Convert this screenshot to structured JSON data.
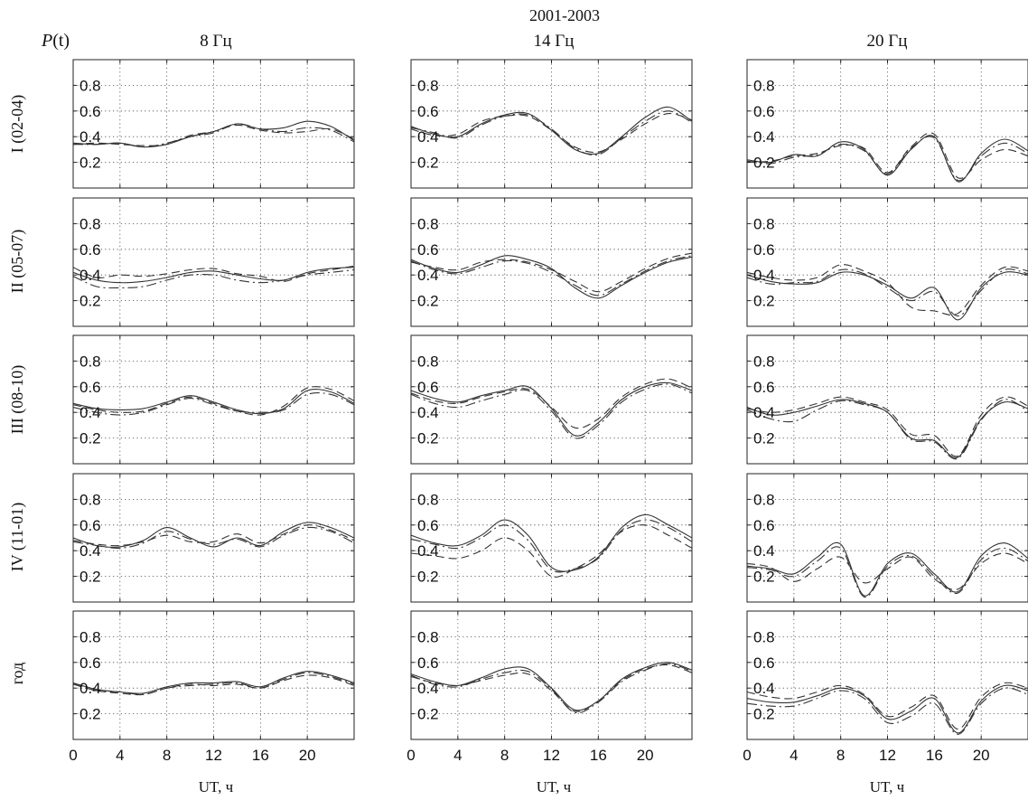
{
  "figure": {
    "title": "2001-2003",
    "ylabel": "P(t)",
    "ylabel_main": "P",
    "ylabel_arg": "(t)"
  },
  "columns": [
    {
      "label": "8 Гц"
    },
    {
      "label": "14 Гц"
    },
    {
      "label": "20 Гц"
    }
  ],
  "rows": [
    {
      "label": "I (02-04)"
    },
    {
      "label": "II (05-07)"
    },
    {
      "label": "III (08-10)"
    },
    {
      "label": "IV (11-01)"
    },
    {
      "label": "год"
    }
  ],
  "axes": {
    "xlabel": "UT, ч",
    "xlim": [
      0,
      24
    ],
    "ylim": [
      0,
      1.0
    ],
    "xticks": [
      0,
      4,
      8,
      12,
      16,
      20
    ],
    "yticks": [
      0.2,
      0.4,
      0.6,
      0.8
    ],
    "ytick_labels": [
      "0.2",
      "0.4",
      "0.6",
      "0.8"
    ],
    "grid": "dotted",
    "line_color": "#333333"
  },
  "chart_data": [
    {
      "type": "line",
      "row": "I (02-04)",
      "column": "8 Гц",
      "x": [
        0,
        2,
        4,
        6,
        8,
        10,
        12,
        14,
        16,
        18,
        20,
        22,
        24
      ],
      "series": [
        {
          "style": "solid",
          "values": [
            0.35,
            0.34,
            0.35,
            0.32,
            0.34,
            0.4,
            0.44,
            0.5,
            0.46,
            0.47,
            0.52,
            0.48,
            0.37
          ]
        },
        {
          "style": "dashed",
          "values": [
            0.34,
            0.35,
            0.34,
            0.33,
            0.34,
            0.41,
            0.44,
            0.49,
            0.45,
            0.43,
            0.44,
            0.46,
            0.38
          ]
        },
        {
          "style": "dashdot",
          "values": [
            0.34,
            0.34,
            0.35,
            0.32,
            0.35,
            0.4,
            0.43,
            0.5,
            0.46,
            0.44,
            0.47,
            0.45,
            0.36
          ]
        }
      ]
    },
    {
      "type": "line",
      "row": "I (02-04)",
      "column": "14 Гц",
      "x": [
        0,
        2,
        4,
        6,
        8,
        10,
        12,
        14,
        16,
        18,
        20,
        22,
        24
      ],
      "series": [
        {
          "style": "solid",
          "values": [
            0.48,
            0.42,
            0.4,
            0.5,
            0.57,
            0.58,
            0.45,
            0.3,
            0.27,
            0.4,
            0.55,
            0.63,
            0.52
          ]
        },
        {
          "style": "dashed",
          "values": [
            0.46,
            0.41,
            0.42,
            0.52,
            0.56,
            0.56,
            0.45,
            0.32,
            0.28,
            0.38,
            0.5,
            0.58,
            0.53
          ]
        },
        {
          "style": "dashdot",
          "values": [
            0.47,
            0.43,
            0.39,
            0.49,
            0.56,
            0.57,
            0.46,
            0.31,
            0.26,
            0.39,
            0.52,
            0.6,
            0.51
          ]
        }
      ]
    },
    {
      "type": "line",
      "row": "I (02-04)",
      "column": "20 Гц",
      "x": [
        0,
        2,
        4,
        6,
        8,
        10,
        12,
        14,
        16,
        18,
        20,
        22,
        24
      ],
      "series": [
        {
          "style": "solid",
          "values": [
            0.22,
            0.2,
            0.26,
            0.25,
            0.36,
            0.3,
            0.1,
            0.3,
            0.4,
            0.05,
            0.27,
            0.38,
            0.29
          ]
        },
        {
          "style": "dashed",
          "values": [
            0.2,
            0.21,
            0.25,
            0.27,
            0.33,
            0.31,
            0.12,
            0.32,
            0.42,
            0.08,
            0.22,
            0.3,
            0.25
          ]
        },
        {
          "style": "dashdot",
          "values": [
            0.21,
            0.19,
            0.24,
            0.26,
            0.34,
            0.29,
            0.11,
            0.31,
            0.39,
            0.06,
            0.25,
            0.35,
            0.27
          ]
        }
      ]
    },
    {
      "type": "line",
      "row": "II (05-07)",
      "column": "8 Гц",
      "x": [
        0,
        2,
        4,
        6,
        8,
        10,
        12,
        14,
        16,
        18,
        20,
        22,
        24
      ],
      "series": [
        {
          "style": "solid",
          "values": [
            0.42,
            0.36,
            0.34,
            0.35,
            0.38,
            0.42,
            0.43,
            0.4,
            0.37,
            0.36,
            0.42,
            0.45,
            0.46
          ]
        },
        {
          "style": "dashed",
          "values": [
            0.46,
            0.38,
            0.4,
            0.39,
            0.41,
            0.44,
            0.45,
            0.41,
            0.39,
            0.35,
            0.41,
            0.44,
            0.47
          ]
        },
        {
          "style": "dashdot",
          "values": [
            0.39,
            0.31,
            0.3,
            0.31,
            0.36,
            0.4,
            0.4,
            0.36,
            0.34,
            0.36,
            0.4,
            0.42,
            0.44
          ]
        }
      ]
    },
    {
      "type": "line",
      "row": "II (05-07)",
      "column": "14 Гц",
      "x": [
        0,
        2,
        4,
        6,
        8,
        10,
        12,
        14,
        16,
        18,
        20,
        22,
        24
      ],
      "series": [
        {
          "style": "solid",
          "values": [
            0.52,
            0.45,
            0.42,
            0.48,
            0.55,
            0.52,
            0.45,
            0.3,
            0.22,
            0.32,
            0.42,
            0.5,
            0.54
          ]
        },
        {
          "style": "dashed",
          "values": [
            0.5,
            0.46,
            0.44,
            0.5,
            0.52,
            0.5,
            0.44,
            0.35,
            0.27,
            0.35,
            0.45,
            0.53,
            0.57
          ]
        },
        {
          "style": "dashdot",
          "values": [
            0.51,
            0.44,
            0.41,
            0.46,
            0.51,
            0.49,
            0.42,
            0.32,
            0.24,
            0.33,
            0.43,
            0.51,
            0.55
          ]
        }
      ]
    },
    {
      "type": "line",
      "row": "II (05-07)",
      "column": "20 Гц",
      "x": [
        0,
        2,
        4,
        6,
        8,
        10,
        12,
        14,
        16,
        18,
        20,
        22,
        24
      ],
      "series": [
        {
          "style": "solid",
          "values": [
            0.4,
            0.35,
            0.33,
            0.34,
            0.42,
            0.4,
            0.32,
            0.22,
            0.3,
            0.05,
            0.3,
            0.42,
            0.4
          ]
        },
        {
          "style": "dashed",
          "values": [
            0.42,
            0.38,
            0.36,
            0.38,
            0.48,
            0.43,
            0.34,
            0.15,
            0.12,
            0.1,
            0.32,
            0.46,
            0.43
          ]
        },
        {
          "style": "dashdot",
          "values": [
            0.38,
            0.33,
            0.34,
            0.35,
            0.44,
            0.41,
            0.3,
            0.2,
            0.27,
            0.08,
            0.28,
            0.44,
            0.41
          ]
        }
      ]
    },
    {
      "type": "line",
      "row": "III (08-10)",
      "column": "8 Гц",
      "x": [
        0,
        2,
        4,
        6,
        8,
        10,
        12,
        14,
        16,
        18,
        20,
        22,
        24
      ],
      "series": [
        {
          "style": "solid",
          "values": [
            0.47,
            0.43,
            0.42,
            0.43,
            0.48,
            0.53,
            0.48,
            0.42,
            0.39,
            0.43,
            0.57,
            0.56,
            0.47
          ]
        },
        {
          "style": "dashed",
          "values": [
            0.46,
            0.42,
            0.4,
            0.41,
            0.47,
            0.52,
            0.47,
            0.41,
            0.38,
            0.45,
            0.59,
            0.58,
            0.49
          ]
        },
        {
          "style": "dashdot",
          "values": [
            0.44,
            0.4,
            0.38,
            0.4,
            0.46,
            0.51,
            0.46,
            0.41,
            0.4,
            0.42,
            0.54,
            0.54,
            0.46
          ]
        }
      ]
    },
    {
      "type": "line",
      "row": "III (08-10)",
      "column": "14 Гц",
      "x": [
        0,
        2,
        4,
        6,
        8,
        10,
        12,
        14,
        16,
        18,
        20,
        22,
        24
      ],
      "series": [
        {
          "style": "solid",
          "values": [
            0.57,
            0.51,
            0.48,
            0.53,
            0.57,
            0.6,
            0.43,
            0.22,
            0.32,
            0.5,
            0.6,
            0.63,
            0.57
          ]
        },
        {
          "style": "dashed",
          "values": [
            0.55,
            0.49,
            0.47,
            0.52,
            0.56,
            0.58,
            0.44,
            0.28,
            0.35,
            0.52,
            0.62,
            0.66,
            0.59
          ]
        },
        {
          "style": "dashdot",
          "values": [
            0.54,
            0.47,
            0.44,
            0.49,
            0.54,
            0.57,
            0.41,
            0.2,
            0.3,
            0.48,
            0.58,
            0.62,
            0.55
          ]
        }
      ]
    },
    {
      "type": "line",
      "row": "III (08-10)",
      "column": "20 Гц",
      "x": [
        0,
        2,
        4,
        6,
        8,
        10,
        12,
        14,
        16,
        18,
        20,
        22,
        24
      ],
      "series": [
        {
          "style": "solid",
          "values": [
            0.44,
            0.38,
            0.4,
            0.45,
            0.5,
            0.47,
            0.4,
            0.2,
            0.18,
            0.05,
            0.35,
            0.48,
            0.43
          ]
        },
        {
          "style": "dashed",
          "values": [
            0.43,
            0.4,
            0.42,
            0.47,
            0.52,
            0.48,
            0.42,
            0.23,
            0.22,
            0.06,
            0.38,
            0.52,
            0.45
          ]
        },
        {
          "style": "dashdot",
          "values": [
            0.42,
            0.35,
            0.33,
            0.42,
            0.49,
            0.46,
            0.4,
            0.19,
            0.17,
            0.04,
            0.34,
            0.5,
            0.41
          ]
        }
      ]
    },
    {
      "type": "line",
      "row": "IV (11-01)",
      "column": "8 Гц",
      "x": [
        0,
        2,
        4,
        6,
        8,
        10,
        12,
        14,
        16,
        18,
        20,
        22,
        24
      ],
      "series": [
        {
          "style": "solid",
          "values": [
            0.5,
            0.44,
            0.43,
            0.48,
            0.58,
            0.5,
            0.43,
            0.5,
            0.44,
            0.55,
            0.62,
            0.58,
            0.5
          ]
        },
        {
          "style": "dashed",
          "values": [
            0.48,
            0.45,
            0.44,
            0.47,
            0.52,
            0.47,
            0.47,
            0.53,
            0.46,
            0.53,
            0.6,
            0.56,
            0.48
          ]
        },
        {
          "style": "dashdot",
          "values": [
            0.47,
            0.44,
            0.42,
            0.46,
            0.55,
            0.49,
            0.45,
            0.49,
            0.43,
            0.52,
            0.58,
            0.55,
            0.46
          ]
        }
      ]
    },
    {
      "type": "line",
      "row": "IV (11-01)",
      "column": "14 Гц",
      "x": [
        0,
        2,
        4,
        6,
        8,
        10,
        12,
        14,
        16,
        18,
        20,
        22,
        24
      ],
      "series": [
        {
          "style": "solid",
          "values": [
            0.52,
            0.46,
            0.44,
            0.52,
            0.64,
            0.52,
            0.27,
            0.25,
            0.35,
            0.58,
            0.68,
            0.6,
            0.5
          ]
        },
        {
          "style": "dashed",
          "values": [
            0.38,
            0.36,
            0.34,
            0.4,
            0.5,
            0.4,
            0.2,
            0.26,
            0.37,
            0.55,
            0.6,
            0.52,
            0.42
          ]
        },
        {
          "style": "dashdot",
          "values": [
            0.49,
            0.45,
            0.42,
            0.5,
            0.6,
            0.48,
            0.25,
            0.26,
            0.34,
            0.56,
            0.64,
            0.58,
            0.47
          ]
        }
      ]
    },
    {
      "type": "line",
      "row": "IV (11-01)",
      "column": "20 Гц",
      "x": [
        0,
        2,
        4,
        6,
        8,
        10,
        12,
        14,
        16,
        18,
        20,
        22,
        24
      ],
      "series": [
        {
          "style": "solid",
          "values": [
            0.28,
            0.26,
            0.22,
            0.35,
            0.45,
            0.05,
            0.3,
            0.38,
            0.22,
            0.08,
            0.36,
            0.46,
            0.34
          ]
        },
        {
          "style": "dashed",
          "values": [
            0.3,
            0.27,
            0.16,
            0.26,
            0.35,
            0.15,
            0.26,
            0.35,
            0.18,
            0.1,
            0.3,
            0.38,
            0.3
          ]
        },
        {
          "style": "dashdot",
          "values": [
            0.27,
            0.25,
            0.2,
            0.32,
            0.42,
            0.04,
            0.28,
            0.36,
            0.2,
            0.07,
            0.33,
            0.42,
            0.32
          ]
        }
      ]
    },
    {
      "type": "line",
      "row": "год",
      "column": "8 Гц",
      "x": [
        0,
        2,
        4,
        6,
        8,
        10,
        12,
        14,
        16,
        18,
        20,
        22,
        24
      ],
      "series": [
        {
          "style": "solid",
          "values": [
            0.44,
            0.39,
            0.37,
            0.36,
            0.41,
            0.44,
            0.44,
            0.45,
            0.41,
            0.48,
            0.53,
            0.5,
            0.44
          ]
        },
        {
          "style": "dashed",
          "values": [
            0.43,
            0.38,
            0.36,
            0.35,
            0.4,
            0.43,
            0.42,
            0.43,
            0.4,
            0.46,
            0.5,
            0.48,
            0.42
          ]
        },
        {
          "style": "dashdot",
          "values": [
            0.44,
            0.38,
            0.37,
            0.35,
            0.4,
            0.42,
            0.43,
            0.44,
            0.4,
            0.47,
            0.52,
            0.49,
            0.43
          ]
        }
      ]
    },
    {
      "type": "line",
      "row": "год",
      "column": "14 Гц",
      "x": [
        0,
        2,
        4,
        6,
        8,
        10,
        12,
        14,
        16,
        18,
        20,
        22,
        24
      ],
      "series": [
        {
          "style": "solid",
          "values": [
            0.51,
            0.45,
            0.42,
            0.48,
            0.55,
            0.55,
            0.4,
            0.23,
            0.3,
            0.47,
            0.56,
            0.6,
            0.54
          ]
        },
        {
          "style": "dashed",
          "values": [
            0.49,
            0.44,
            0.42,
            0.46,
            0.5,
            0.51,
            0.38,
            0.22,
            0.3,
            0.46,
            0.55,
            0.58,
            0.52
          ]
        },
        {
          "style": "dashdot",
          "values": [
            0.5,
            0.43,
            0.41,
            0.47,
            0.52,
            0.53,
            0.39,
            0.21,
            0.29,
            0.45,
            0.54,
            0.59,
            0.53
          ]
        }
      ]
    },
    {
      "type": "line",
      "row": "год",
      "column": "20 Гц",
      "x": [
        0,
        2,
        4,
        6,
        8,
        10,
        12,
        14,
        16,
        18,
        20,
        22,
        24
      ],
      "series": [
        {
          "style": "solid",
          "values": [
            0.32,
            0.29,
            0.29,
            0.34,
            0.4,
            0.34,
            0.16,
            0.22,
            0.32,
            0.05,
            0.3,
            0.42,
            0.38
          ]
        },
        {
          "style": "dashed",
          "values": [
            0.37,
            0.33,
            0.32,
            0.37,
            0.42,
            0.35,
            0.18,
            0.25,
            0.34,
            0.08,
            0.33,
            0.44,
            0.4
          ]
        },
        {
          "style": "dashdot",
          "values": [
            0.28,
            0.26,
            0.26,
            0.32,
            0.38,
            0.32,
            0.13,
            0.18,
            0.28,
            0.04,
            0.28,
            0.4,
            0.35
          ]
        }
      ]
    }
  ]
}
